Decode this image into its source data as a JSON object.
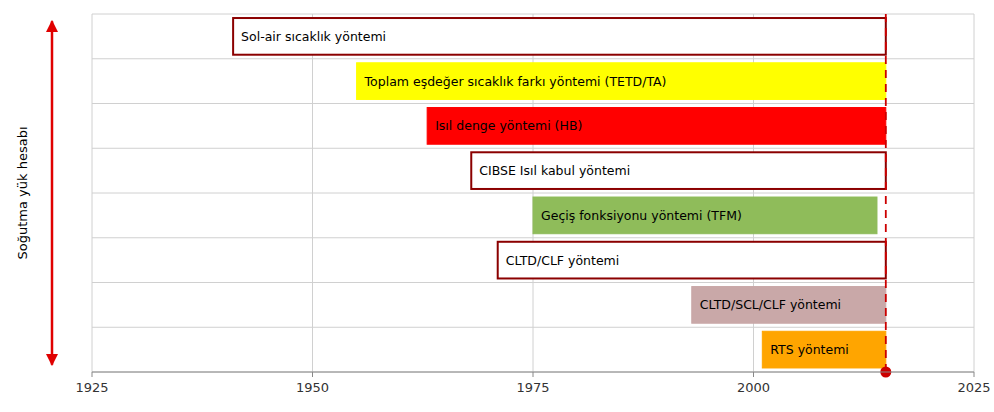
{
  "chart_data": {
    "type": "gantt",
    "orientation": "horizontal",
    "ylabel": "Soğutma yük hesabı",
    "categories": [
      "Sol-air sıcaklık yöntemi",
      "Toplam eşdeğer sıcaklık farkı yöntemi (TETD/TA)",
      "Isıl denge yöntemi (HB)",
      "CIBSE Isıl kabul yöntemi",
      "Geçiş fonksiyonu yöntemi (TFM)",
      "CLTD/CLF yöntemi",
      "CLTD/SCL/CLF yöntemi",
      "RTS yöntemi"
    ],
    "starts": [
      1941,
      1955,
      1963,
      1968,
      1975,
      1971,
      1993,
      2001
    ],
    "values": [
      2015,
      2015,
      2015,
      2015,
      2014,
      2015,
      2015,
      2015
    ],
    "colors": [
      "#ffffff",
      "#ffff00",
      "#ff0000",
      "#ffffff",
      "#8fbc5a",
      "#ffffff",
      "#c9a8a8",
      "#ffa500"
    ],
    "vline": 2015,
    "xlim": [
      1925,
      2025
    ],
    "xticks": [
      1925,
      1950,
      1975,
      2000,
      2025
    ],
    "grid": true,
    "tick_labels": "x"
  }
}
